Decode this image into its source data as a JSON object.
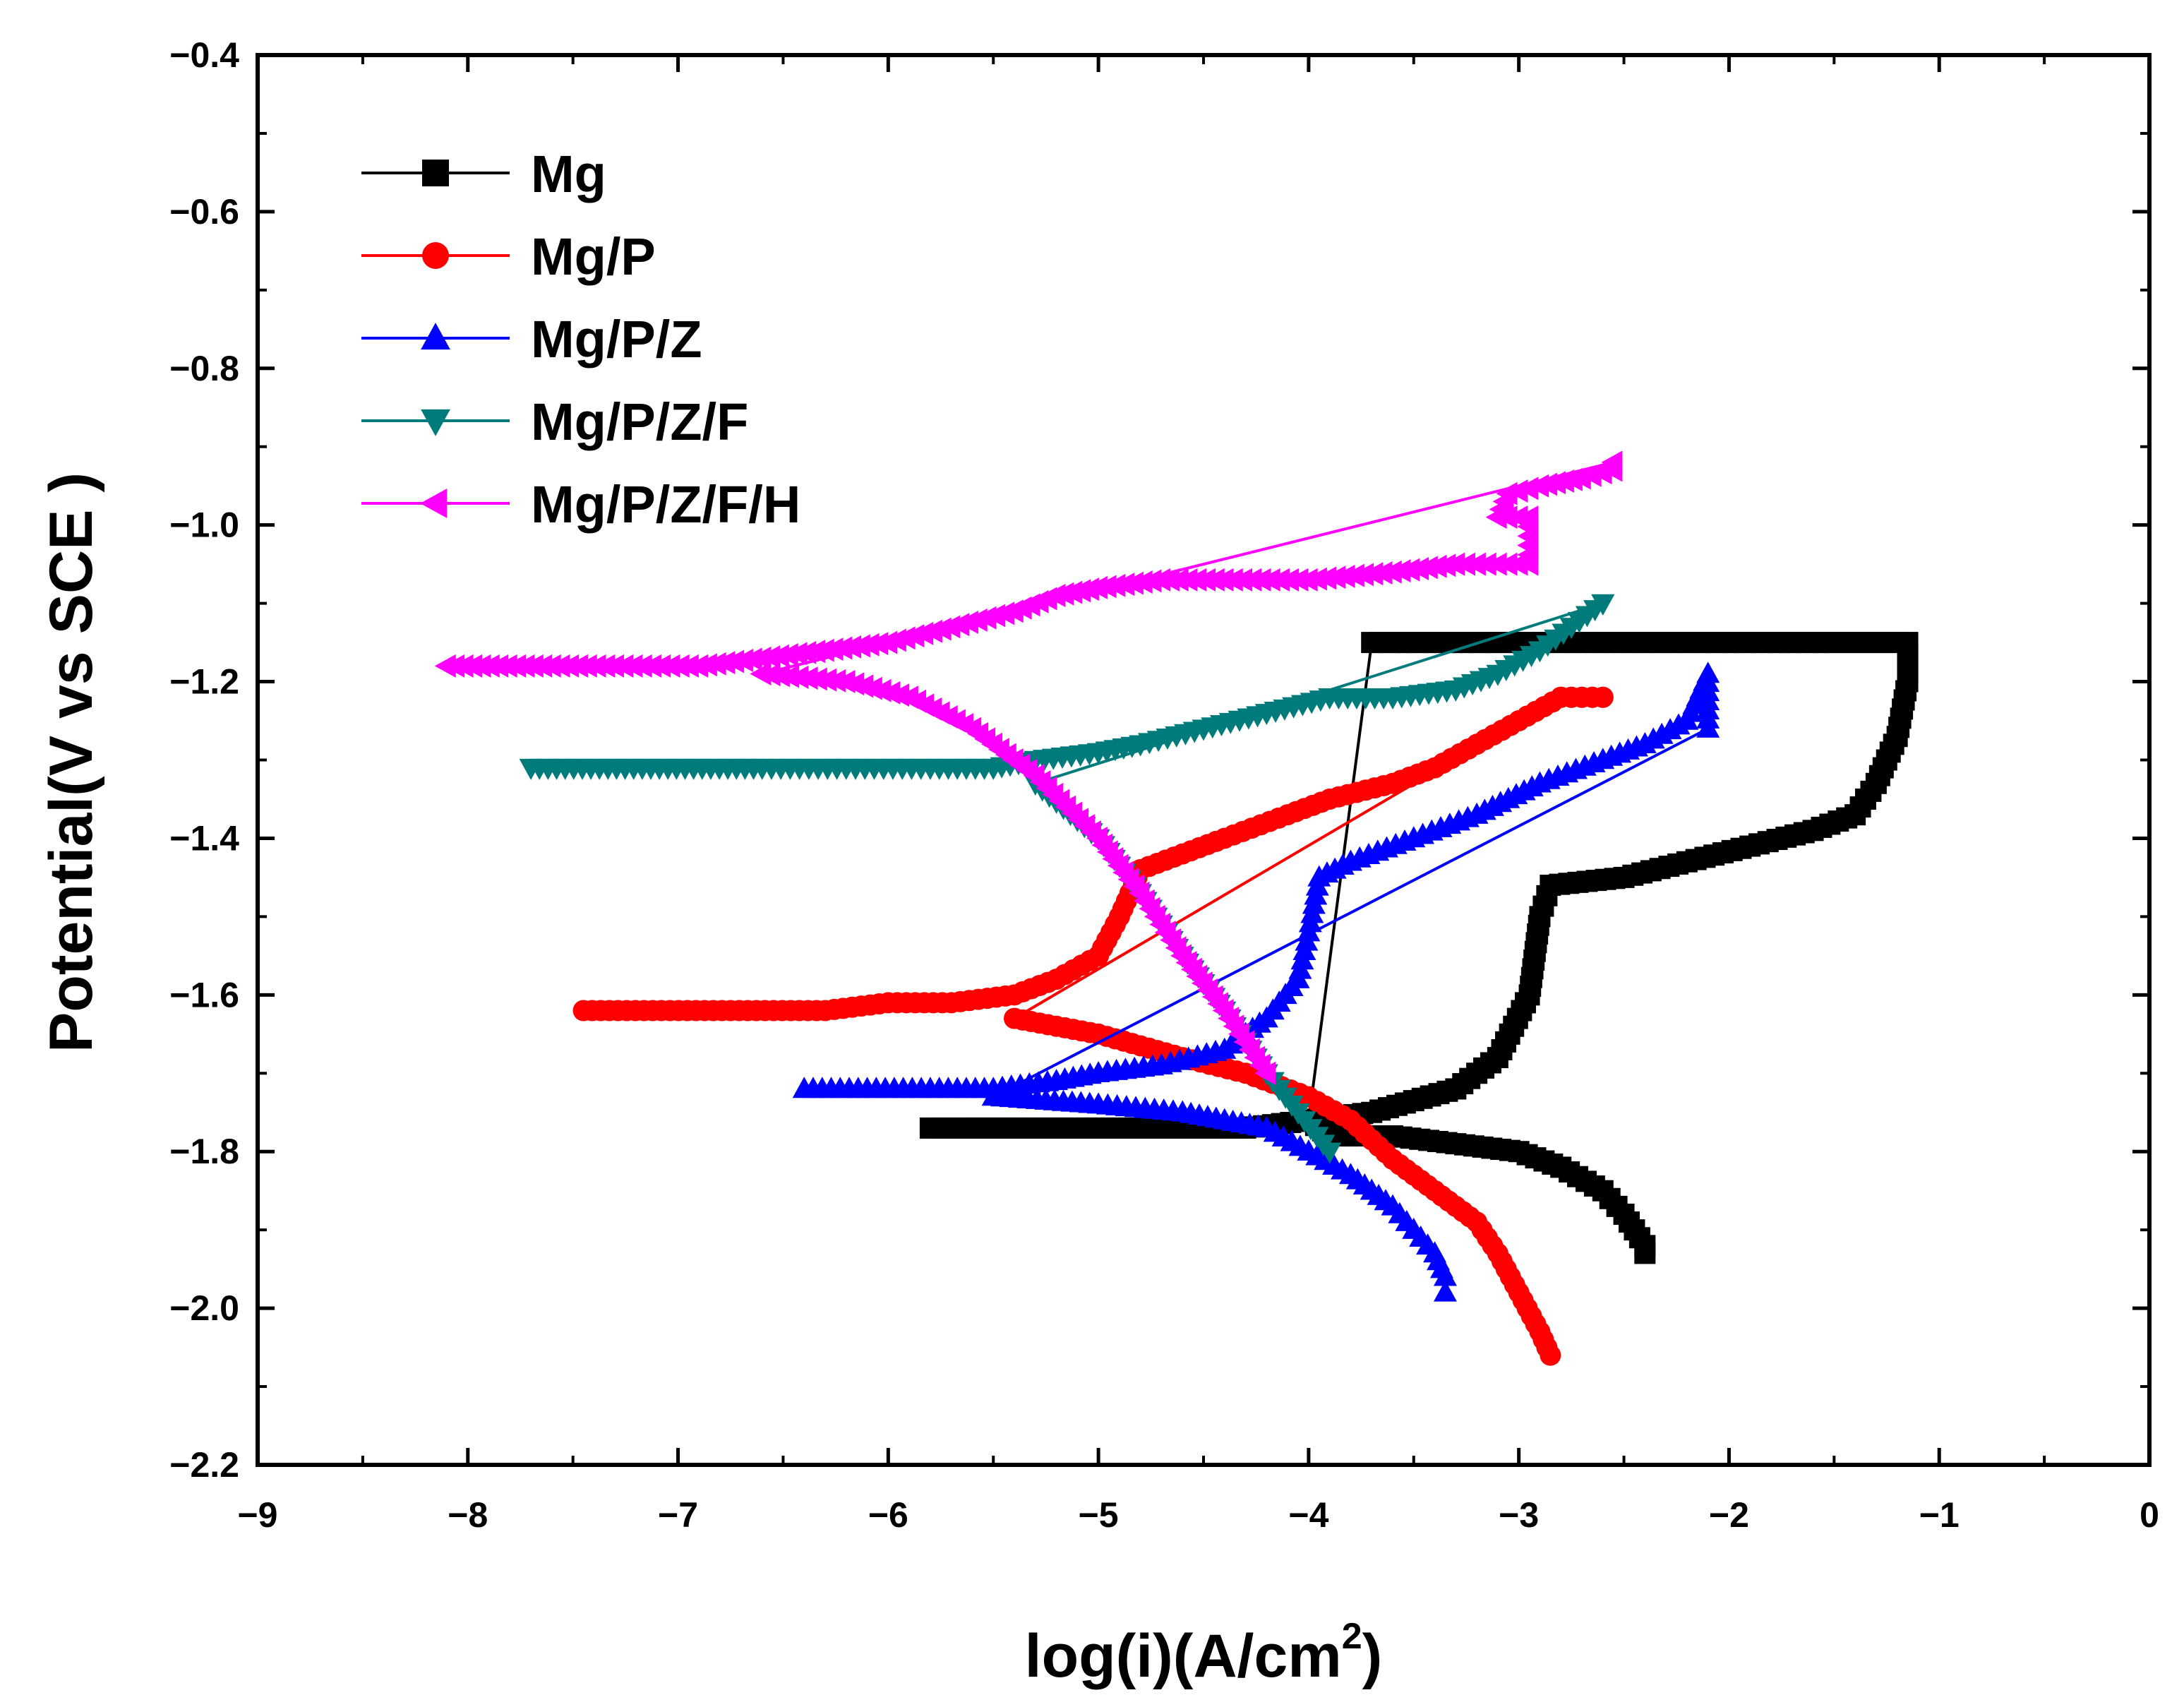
{
  "chart_data": {
    "type": "line",
    "title": "",
    "xlabel": "log(i)(A/cm",
    "xlabel_sup": "2",
    "xlabel_end": ")",
    "ylabel": "Potential(V vs SCE )",
    "xlim": [
      -9,
      0
    ],
    "ylim": [
      -2.2,
      -0.4
    ],
    "x_ticks": [
      -9,
      -8,
      -7,
      -6,
      -5,
      -4,
      -3,
      -2,
      -1,
      0
    ],
    "x_tick_labels": [
      "−9",
      "−8",
      "−7",
      "−6",
      "−5",
      "−4",
      "−3",
      "−2",
      "−1",
      "0"
    ],
    "y_ticks": [
      -0.4,
      -0.6,
      -0.8,
      -1.0,
      -1.2,
      -1.4,
      -1.6,
      -1.8,
      -2.0,
      -2.2
    ],
    "y_tick_labels": [
      "−0.4",
      "−0.6",
      "−0.8",
      "−1.0",
      "−1.2",
      "−1.4",
      "−1.6",
      "−1.8",
      "−2.0",
      "−2.2"
    ],
    "legend_position": "top-left",
    "series": [
      {
        "name": "Mg",
        "color": "#000000",
        "marker": "square",
        "x": [
          -5.8,
          -5.6,
          -5.35,
          -4.85,
          -4.6,
          -4.3,
          -4.0,
          -3.7,
          -3.3,
          -3.1,
          -2.95,
          -2.9,
          -2.85,
          -2.5,
          -2.2,
          -1.9,
          -1.6,
          -1.4,
          -1.3,
          -1.2,
          -1.15,
          -1.15,
          -1.2,
          -1.25,
          -1.35,
          -1.5,
          -1.8,
          -2.1,
          -2.5,
          -2.9,
          -3.1,
          -3.4,
          -3.7,
          -4.0,
          -3.9,
          -3.6,
          -3.3,
          -3.0,
          -2.8,
          -2.6,
          -2.5,
          -2.4,
          -2.4
        ],
        "y": [
          -1.77,
          -1.77,
          -1.77,
          -1.77,
          -1.77,
          -1.77,
          -1.76,
          -1.75,
          -1.72,
          -1.68,
          -1.6,
          -1.5,
          -1.46,
          -1.45,
          -1.43,
          -1.41,
          -1.39,
          -1.37,
          -1.33,
          -1.27,
          -1.2,
          -1.15,
          -1.15,
          -1.15,
          -1.15,
          -1.15,
          -1.15,
          -1.15,
          -1.15,
          -1.15,
          -1.15,
          -1.15,
          -1.15,
          -1.76,
          -1.78,
          -1.78,
          -1.79,
          -1.8,
          -1.82,
          -1.85,
          -1.88,
          -1.92,
          -1.93
        ]
      },
      {
        "name": "Mg/P",
        "color": "#ff0000",
        "marker": "circle",
        "x": [
          -7.45,
          -6.75,
          -6.3,
          -6.0,
          -5.7,
          -5.4,
          -5.2,
          -5.0,
          -4.9,
          -4.8,
          -4.6,
          -4.4,
          -4.1,
          -3.9,
          -3.6,
          -3.4,
          -3.2,
          -3.0,
          -2.8,
          -2.7,
          -2.6,
          -2.6,
          -2.7,
          -2.8,
          -5.4,
          -5.0,
          -4.6,
          -4.3,
          -4.0,
          -3.8,
          -3.6,
          -3.4,
          -3.2,
          -3.1,
          -3.0,
          -2.9,
          -2.85
        ],
        "y": [
          -1.62,
          -1.62,
          -1.62,
          -1.61,
          -1.61,
          -1.6,
          -1.58,
          -1.55,
          -1.5,
          -1.44,
          -1.42,
          -1.4,
          -1.37,
          -1.35,
          -1.33,
          -1.31,
          -1.28,
          -1.25,
          -1.22,
          -1.22,
          -1.22,
          -1.22,
          -1.22,
          -1.22,
          -1.63,
          -1.65,
          -1.68,
          -1.7,
          -1.73,
          -1.76,
          -1.81,
          -1.85,
          -1.89,
          -1.93,
          -1.98,
          -2.03,
          -2.06
        ]
      },
      {
        "name": "Mg/P/Z",
        "color": "#0000ff",
        "marker": "triangle-up",
        "x": [
          -6.4,
          -6.1,
          -5.8,
          -5.5,
          -5.2,
          -5.0,
          -4.7,
          -4.4,
          -4.2,
          -4.05,
          -4.0,
          -3.95,
          -3.8,
          -3.5,
          -3.2,
          -2.9,
          -2.6,
          -2.4,
          -2.2,
          -2.15,
          -2.1,
          -2.1,
          -5.5,
          -5.0,
          -4.6,
          -4.2,
          -4.0,
          -3.8,
          -3.6,
          -3.5,
          -3.4,
          -3.35,
          -3.35
        ],
        "y": [
          -1.72,
          -1.72,
          -1.72,
          -1.72,
          -1.71,
          -1.7,
          -1.69,
          -1.67,
          -1.63,
          -1.58,
          -1.52,
          -1.45,
          -1.43,
          -1.4,
          -1.37,
          -1.33,
          -1.3,
          -1.28,
          -1.25,
          -1.22,
          -1.19,
          -1.26,
          -1.73,
          -1.74,
          -1.75,
          -1.77,
          -1.8,
          -1.83,
          -1.87,
          -1.9,
          -1.93,
          -1.96,
          -1.98
        ]
      },
      {
        "name": "Mg/P/Z/F",
        "color": "#007b7b",
        "marker": "triangle-down",
        "x": [
          -7.7,
          -6.6,
          -6.2,
          -5.8,
          -5.5,
          -5.3,
          -5.0,
          -4.8,
          -4.5,
          -4.2,
          -3.9,
          -3.6,
          -3.3,
          -3.1,
          -2.9,
          -2.75,
          -2.6,
          -2.6,
          -5.3,
          -5.0,
          -4.8,
          -4.6,
          -4.4,
          -4.2,
          -4.05,
          -3.9
        ],
        "y": [
          -1.31,
          -1.31,
          -1.31,
          -1.31,
          -1.31,
          -1.3,
          -1.29,
          -1.28,
          -1.26,
          -1.24,
          -1.22,
          -1.22,
          -1.21,
          -1.19,
          -1.16,
          -1.13,
          -1.1,
          -1.1,
          -1.33,
          -1.4,
          -1.47,
          -1.55,
          -1.62,
          -1.7,
          -1.75,
          -1.8
        ]
      },
      {
        "name": "Mg/P/Z/F/H",
        "color": "#ff00ff",
        "marker": "triangle-left",
        "x": [
          -8.1,
          -7.6,
          -7.3,
          -6.9,
          -6.6,
          -6.3,
          -6.0,
          -5.7,
          -5.4,
          -5.2,
          -5.0,
          -4.7,
          -4.4,
          -4.0,
          -3.6,
          -3.3,
          -3.1,
          -2.95,
          -2.95,
          -3.1,
          -3.05,
          -2.9,
          -2.7,
          -2.55,
          -2.55,
          -6.6,
          -6.2,
          -5.9,
          -5.6,
          -5.3,
          -5.0,
          -4.8,
          -4.6,
          -4.4,
          -4.2
        ],
        "y": [
          -1.18,
          -1.18,
          -1.18,
          -1.18,
          -1.17,
          -1.16,
          -1.15,
          -1.13,
          -1.11,
          -1.09,
          -1.08,
          -1.07,
          -1.07,
          -1.07,
          -1.06,
          -1.05,
          -1.05,
          -1.05,
          -0.99,
          -0.99,
          -0.96,
          -0.95,
          -0.94,
          -0.93,
          -0.92,
          -1.19,
          -1.2,
          -1.22,
          -1.26,
          -1.32,
          -1.4,
          -1.47,
          -1.55,
          -1.62,
          -1.7
        ]
      }
    ]
  }
}
